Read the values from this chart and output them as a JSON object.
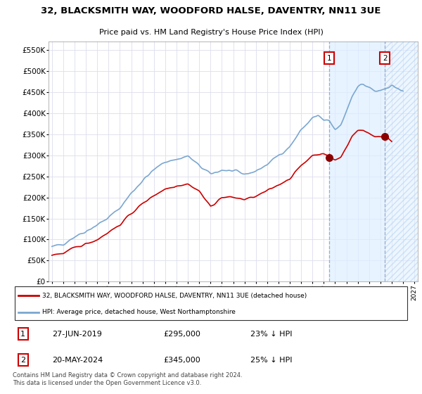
{
  "title": "32, BLACKSMITH WAY, WOODFORD HALSE, DAVENTRY, NN11 3UE",
  "subtitle": "Price paid vs. HM Land Registry's House Price Index (HPI)",
  "ylabel_ticks": [
    "£0",
    "£50K",
    "£100K",
    "£150K",
    "£200K",
    "£250K",
    "£300K",
    "£350K",
    "£400K",
    "£450K",
    "£500K",
    "£550K"
  ],
  "ytick_values": [
    0,
    50000,
    100000,
    150000,
    200000,
    250000,
    300000,
    350000,
    400000,
    450000,
    500000,
    550000
  ],
  "ylim": [
    0,
    570000
  ],
  "red_color": "#cc0000",
  "blue_color": "#7ba7d0",
  "dashed_color": "#aabbdd",
  "marker1_date": "27-JUN-2019",
  "marker1_price": 295000,
  "marker1_label": "23% ↓ HPI",
  "marker2_date": "20-MAY-2024",
  "marker2_price": 345000,
  "marker2_label": "25% ↓ HPI",
  "legend_line1": "32, BLACKSMITH WAY, WOODFORD HALSE, DAVENTRY, NN11 3UE (detached house)",
  "legend_line2": "HPI: Average price, detached house, West Northamptonshire",
  "footer": "Contains HM Land Registry data © Crown copyright and database right 2024.\nThis data is licensed under the Open Government Licence v3.0.",
  "marker1_x": 2019.5,
  "marker2_x": 2024.4,
  "shade1_x": 2019.5,
  "shade2_x": 2024.4,
  "hatch_x": 2024.4,
  "xlim_left": 1994.7,
  "xlim_right": 2027.3
}
